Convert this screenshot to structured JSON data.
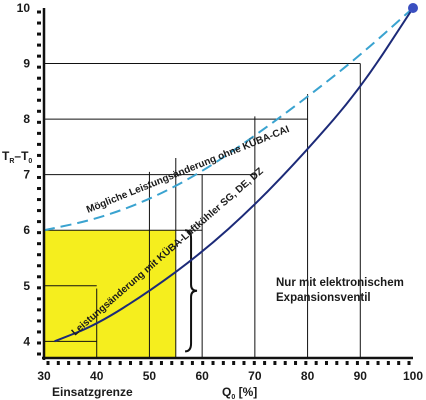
{
  "chart_data": {
    "type": "line",
    "title": "",
    "xlabel_main": "Q",
    "xlabel_sub": "0",
    "xlabel_tail": " [%]",
    "xlabel_left": "Einsatzgrenze",
    "ylabel_a": "T",
    "ylabel_sub_a": "R",
    "ylabel_mid": "–T",
    "ylabel_sub_b": "0",
    "xlim": [
      30,
      100
    ],
    "ylim": [
      3.7,
      10
    ],
    "x_ticks": [
      "30",
      "40",
      "50",
      "60",
      "70",
      "80",
      "90",
      "100"
    ],
    "y_ticks": [
      "4",
      "5",
      "6",
      "7",
      "8",
      "9",
      "10"
    ],
    "x_tick_values": [
      30,
      40,
      50,
      60,
      70,
      80,
      90,
      100
    ],
    "y_tick_values": [
      4,
      5,
      6,
      7,
      8,
      9,
      10
    ],
    "highlight_region": {
      "x": [
        30,
        55
      ],
      "y": [
        3.7,
        6
      ],
      "color": "#f5ee1e"
    },
    "bracket": {
      "x": 56,
      "y": [
        4,
        6
      ]
    },
    "annotation_line1": "Nur mit elektronischem",
    "annotation_line2": "Expansionsventil",
    "series": [
      {
        "name": "Mögliche Leistungsänderung ohne KÜBA-CAI",
        "style": "dashed",
        "color": "#3aa3d0",
        "x": [
          30,
          40,
          50,
          60,
          70,
          80,
          90,
          100
        ],
        "y": [
          6.0,
          6.2,
          6.55,
          7.05,
          7.7,
          8.4,
          9.15,
          10.0
        ]
      },
      {
        "name": "Leistungsänderung mit KÜBA-Luftkühler SG, DE, DZ",
        "style": "solid",
        "color": "#1c2a78",
        "x": [
          32,
          40,
          50,
          60,
          70,
          80,
          90,
          100
        ],
        "y": [
          4.0,
          4.3,
          4.9,
          5.6,
          6.45,
          7.45,
          8.55,
          10.0
        ]
      }
    ],
    "reference_lines": [
      {
        "y": 9,
        "x_end": 90
      },
      {
        "y": 8,
        "x_end": 80
      },
      {
        "y": 7,
        "x_end": 70
      },
      {
        "y": 6,
        "x_end": 60
      },
      {
        "y": 5,
        "x_end": 40
      },
      {
        "y": 4,
        "x_end": 40
      }
    ],
    "vertical_lines": [
      {
        "x": 40,
        "y_top": 4.95
      },
      {
        "x": 50,
        "y_top": 7.05
      },
      {
        "x": 55,
        "y_top": 7.3
      },
      {
        "x": 60,
        "y_top": 7.0
      },
      {
        "x": 70,
        "y_top": 8.05
      },
      {
        "x": 80,
        "y_top": 8.45
      },
      {
        "x": 90,
        "y_top": 9.0
      }
    ],
    "endpoint": {
      "x": 100,
      "y": 10,
      "color": "#3a4fc0"
    },
    "grid": false,
    "legend": "none"
  }
}
